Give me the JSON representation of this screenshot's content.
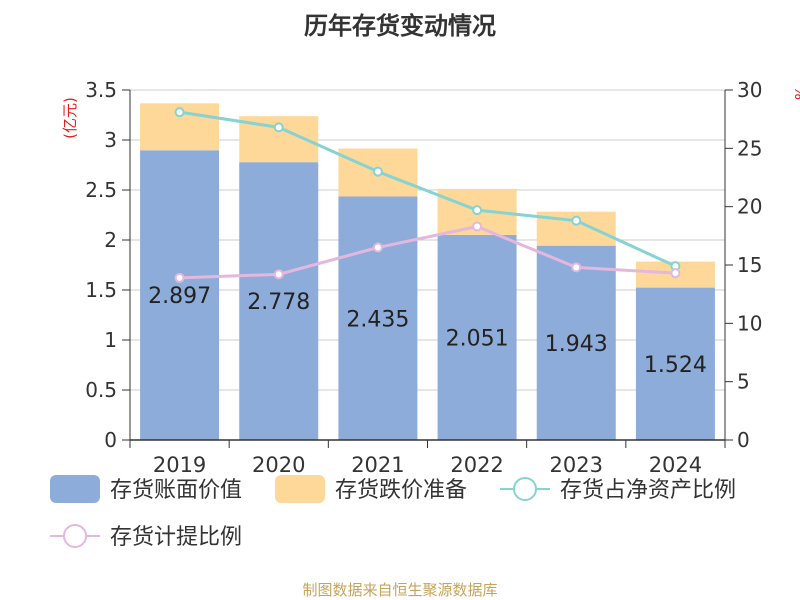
{
  "colors": {
    "book_value": "#8eacd9",
    "provision": "#fdd898",
    "ratio_net_assets": "#87d3d2",
    "provision_ratio": "#e4b7de",
    "source": "#c8a45a",
    "axis_unit": "#e02020"
  },
  "chart_data": {
    "type": "bar",
    "title": "历年存货变动情况",
    "source": "制图数据来自恒生聚源数据库",
    "ylabel_left": "(亿元)",
    "ylabel_right": "%",
    "categories": [
      "2019",
      "2020",
      "2021",
      "2022",
      "2023",
      "2024"
    ],
    "ylim_left": [
      0,
      3.5
    ],
    "ylim_right": [
      0,
      30
    ],
    "yticks_left": [
      "0",
      "0.5",
      "1",
      "1.5",
      "2",
      "2.5",
      "3",
      "3.5"
    ],
    "yticks_right": [
      "0",
      "5",
      "10",
      "15",
      "20",
      "25",
      "30"
    ],
    "grid": true,
    "legend_position": "bottom",
    "series": [
      {
        "name": "存货账面价值",
        "kind": "bar",
        "stack": "inv",
        "axis": "left",
        "values": [
          2.897,
          2.778,
          2.435,
          2.051,
          1.943,
          1.524
        ],
        "labels": [
          "2.897",
          "2.778",
          "2.435",
          "2.051",
          "1.943",
          "1.524"
        ]
      },
      {
        "name": "存货跌价准备",
        "kind": "bar",
        "stack": "inv",
        "axis": "left",
        "values": [
          0.47,
          0.46,
          0.48,
          0.46,
          0.34,
          0.26
        ]
      },
      {
        "name": "存货占净资产比例",
        "kind": "line",
        "axis": "right",
        "values": [
          28.1,
          26.8,
          23.0,
          19.7,
          18.8,
          14.9
        ]
      },
      {
        "name": "存货计提比例",
        "kind": "line",
        "axis": "right",
        "values": [
          13.9,
          14.2,
          16.5,
          18.3,
          14.8,
          14.3
        ]
      }
    ]
  }
}
